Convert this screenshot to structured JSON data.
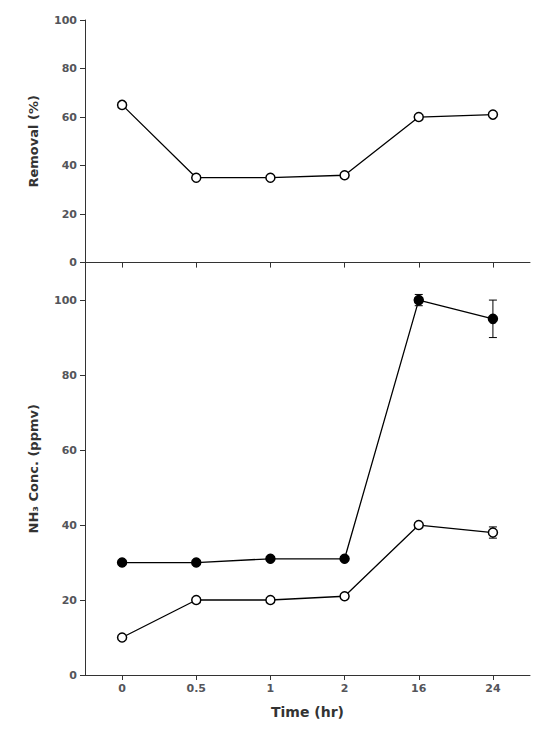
{
  "chart_data": [
    {
      "type": "line",
      "categories": [
        "0",
        "0.5",
        "1",
        "2",
        "16",
        "24"
      ],
      "ylabel": "Removal (%)",
      "ylim": [
        0,
        100
      ],
      "yticks": [
        0,
        20,
        40,
        60,
        80,
        100
      ],
      "grid": false,
      "tick_labels": "y",
      "series": [
        {
          "values": [
            65,
            35,
            35,
            36,
            60,
            61
          ],
          "color": "black",
          "marker": "open_circle",
          "line_style": "solid"
        }
      ]
    },
    {
      "type": "line",
      "categories": [
        "0",
        "0.5",
        "1",
        "2",
        "16",
        "24"
      ],
      "xlabel": "Time (hr)",
      "ylabel": "NH₃ Conc. (ppmv)",
      "ylim": [
        0,
        110
      ],
      "yticks": [
        0,
        20,
        40,
        60,
        80,
        100
      ],
      "grid": false,
      "series": [
        {
          "values": [
            10,
            20,
            20,
            21,
            40,
            38
          ],
          "yerr": [
            0,
            0,
            0,
            0,
            0,
            1.5
          ],
          "color": "black",
          "marker": "open_circle",
          "line_style": "solid"
        },
        {
          "values": [
            30,
            30,
            31,
            31,
            100,
            95
          ],
          "yerr": [
            0,
            0,
            0,
            0,
            1.5,
            5
          ],
          "color": "black",
          "marker": "circle",
          "line_style": "solid"
        }
      ]
    }
  ]
}
